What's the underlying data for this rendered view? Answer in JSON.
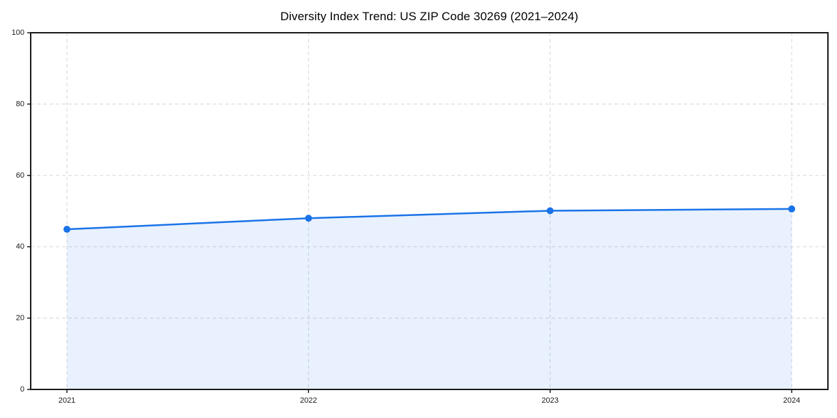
{
  "figure": {
    "background": "#ffffff"
  },
  "chart_data": {
    "type": "area",
    "title": "Diversity Index Trend: US ZIP Code 30269 (2021–2024)",
    "x": [
      2021,
      2022,
      2023,
      2024
    ],
    "series": [
      {
        "name": "Diversity Index",
        "values": [
          44.9,
          48.0,
          50.1,
          50.6
        ]
      }
    ],
    "xlabel": "",
    "ylabel": "",
    "ylim": [
      0,
      100
    ],
    "yticks": [
      0,
      20,
      40,
      60,
      80,
      100
    ],
    "xticks": [
      2021,
      2022,
      2023,
      2024
    ],
    "xtick_labels": [
      "2021",
      "2022",
      "2023",
      "2024"
    ],
    "ytick_labels": [
      "0",
      "20",
      "40",
      "60",
      "80",
      "100"
    ],
    "x_margin_frac": 0.05,
    "grid": true,
    "grid_style": "dashed",
    "legend": null,
    "colors": {
      "line": "#1a73e8",
      "marker": "#1a73e8",
      "area_fill": "#1a73e8",
      "area_opacity": 0.1,
      "grid": "#dcdcdc",
      "spine": "#1a1a1a",
      "tick": "#1a1a1a",
      "tick_label": "#1a1a1a",
      "title": "#000000"
    }
  }
}
